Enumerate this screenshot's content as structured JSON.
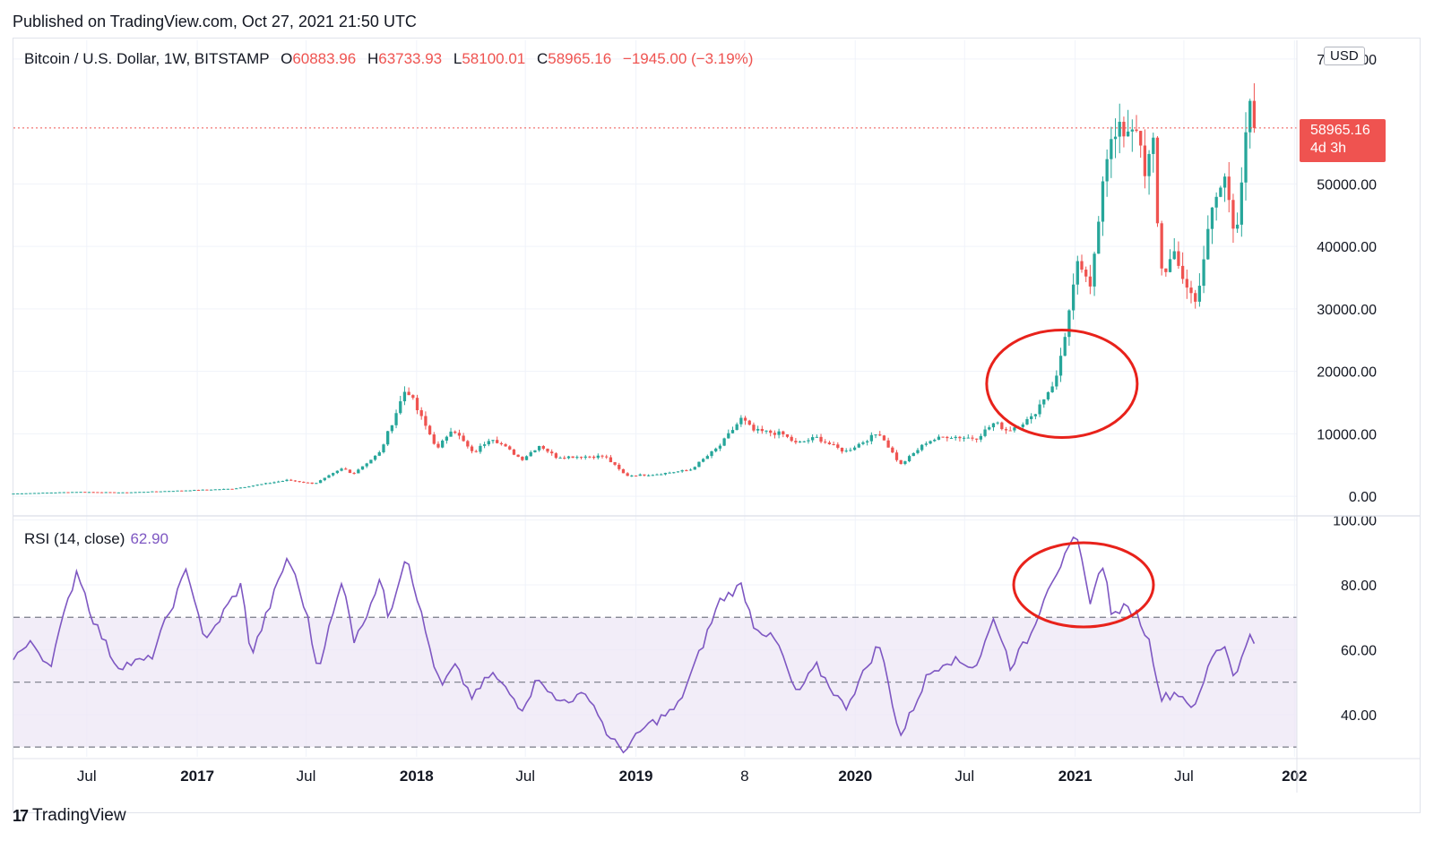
{
  "header": {
    "published": "Published on TradingView.com, Oct 27, 2021 21:50 UTC"
  },
  "legend": {
    "symbol": "Bitcoin / U.S. Dollar, 1W, BITSTAMP",
    "o_label": "O",
    "o_value": "60883.96",
    "h_label": "H",
    "h_value": "63733.93",
    "l_label": "L",
    "l_value": "58100.01",
    "c_label": "C",
    "c_value": "58965.16",
    "change": "−1945.00 (−3.19%)"
  },
  "rsi_legend": {
    "label": "RSI (14, close)",
    "value": "62.90"
  },
  "price_tag": {
    "price": "58965.16",
    "countdown": "4d 3h"
  },
  "currency": "USD",
  "brand": {
    "logo": "17",
    "name": "TradingView"
  },
  "colors": {
    "up": "#26a69a",
    "down": "#ef5350",
    "rsi": "#7e57c2",
    "band": "#ede7f6",
    "annotation": "#e8221b"
  },
  "chart_data": [
    {
      "type": "candlestick",
      "title": "Bitcoin / U.S. Dollar, 1W, BITSTAMP",
      "ylim": [
        -3000,
        73000
      ],
      "yticks": [
        "0.00",
        "10000.00",
        "20000.00",
        "30000.00",
        "40000.00",
        "50000.00",
        "70000.00"
      ],
      "last_price": 58965.16,
      "x_range": [
        "2016-03-01",
        "2022-01-05"
      ],
      "xticks": [
        {
          "date": "2016-07-01",
          "label": "Jul",
          "bold": false
        },
        {
          "date": "2017-01-01",
          "label": "2017",
          "bold": true
        },
        {
          "date": "2017-07-01",
          "label": "Jul",
          "bold": false
        },
        {
          "date": "2018-01-01",
          "label": "2018",
          "bold": true
        },
        {
          "date": "2018-07-01",
          "label": "Jul",
          "bold": false
        },
        {
          "date": "2019-01-01",
          "label": "2019",
          "bold": true
        },
        {
          "date": "2019-07-01",
          "label": "8",
          "bold": false
        },
        {
          "date": "2020-01-01",
          "label": "2020",
          "bold": true
        },
        {
          "date": "2020-07-01",
          "label": "Jul",
          "bold": false
        },
        {
          "date": "2021-01-01",
          "label": "2021",
          "bold": true
        },
        {
          "date": "2021-07-01",
          "label": "Jul",
          "bold": false
        },
        {
          "date": "2022-01-01",
          "label": "202",
          "bold": true
        }
      ],
      "anchors": [
        [
          "2016-03-01",
          430
        ],
        [
          "2016-06-15",
          700
        ],
        [
          "2016-09-01",
          600
        ],
        [
          "2017-01-01",
          1000
        ],
        [
          "2017-03-01",
          1200
        ],
        [
          "2017-06-01",
          2600
        ],
        [
          "2017-07-15",
          2000
        ],
        [
          "2017-09-01",
          4500
        ],
        [
          "2017-09-15",
          3500
        ],
        [
          "2017-11-01",
          7000
        ],
        [
          "2017-12-15",
          17500
        ],
        [
          "2018-01-01",
          14000
        ],
        [
          "2018-02-05",
          7500
        ],
        [
          "2018-03-01",
          11000
        ],
        [
          "2018-04-05",
          6800
        ],
        [
          "2018-05-05",
          9500
        ],
        [
          "2018-06-25",
          5900
        ],
        [
          "2018-07-25",
          8200
        ],
        [
          "2018-08-20",
          6300
        ],
        [
          "2018-11-10",
          6400
        ],
        [
          "2018-12-15",
          3300
        ],
        [
          "2019-02-01",
          3500
        ],
        [
          "2019-04-01",
          4200
        ],
        [
          "2019-05-20",
          8000
        ],
        [
          "2019-06-26",
          12500
        ],
        [
          "2019-07-15",
          10500
        ],
        [
          "2019-09-01",
          10000
        ],
        [
          "2019-09-25",
          8400
        ],
        [
          "2019-10-28",
          9400
        ],
        [
          "2019-12-15",
          7100
        ],
        [
          "2020-02-10",
          10200
        ],
        [
          "2020-03-16",
          5000
        ],
        [
          "2020-04-30",
          8800
        ],
        [
          "2020-06-01",
          9600
        ],
        [
          "2020-07-20",
          9300
        ],
        [
          "2020-08-20",
          11800
        ],
        [
          "2020-09-10",
          10500
        ],
        [
          "2020-10-20",
          12500
        ],
        [
          "2020-12-01",
          19000
        ],
        [
          "2021-01-08",
          38000
        ],
        [
          "2021-01-25",
          32000
        ],
        [
          "2021-02-20",
          55000
        ],
        [
          "2021-03-15",
          58000
        ],
        [
          "2021-04-14",
          60000
        ],
        [
          "2021-04-25",
          50000
        ],
        [
          "2021-05-12",
          57000
        ],
        [
          "2021-05-22",
          36000
        ],
        [
          "2021-06-15",
          38000
        ],
        [
          "2021-07-20",
          31000
        ],
        [
          "2021-08-20",
          47000
        ],
        [
          "2021-09-08",
          51000
        ],
        [
          "2021-09-25",
          42000
        ],
        [
          "2021-10-10",
          55000
        ],
        [
          "2021-10-20",
          63000
        ],
        [
          "2021-10-27",
          58965
        ]
      ]
    },
    {
      "type": "line",
      "series": [
        {
          "name": "RSI (14, close)",
          "color": "#7e57c2"
        }
      ],
      "ylim": [
        27,
        101
      ],
      "yticks": [
        "40.00",
        "60.00",
        "80.00",
        "100.00"
      ],
      "band": [
        30,
        70
      ],
      "midline": 50,
      "x_range": [
        "2016-03-01",
        "2022-01-05"
      ],
      "anchors": [
        [
          "2016-03-01",
          58
        ],
        [
          "2016-04-01",
          62
        ],
        [
          "2016-05-01",
          55
        ],
        [
          "2016-06-15",
          85
        ],
        [
          "2016-07-10",
          70
        ],
        [
          "2016-08-20",
          55
        ],
        [
          "2016-10-15",
          57
        ],
        [
          "2016-12-15",
          85
        ],
        [
          "2017-01-15",
          62
        ],
        [
          "2017-02-15",
          72
        ],
        [
          "2017-03-15",
          80
        ],
        [
          "2017-04-01",
          58
        ],
        [
          "2017-06-01",
          89
        ],
        [
          "2017-07-01",
          72
        ],
        [
          "2017-07-20",
          54
        ],
        [
          "2017-09-01",
          82
        ],
        [
          "2017-09-20",
          62
        ],
        [
          "2017-11-01",
          82
        ],
        [
          "2017-11-15",
          70
        ],
        [
          "2017-12-15",
          90
        ],
        [
          "2018-01-15",
          66
        ],
        [
          "2018-02-10",
          48
        ],
        [
          "2018-03-05",
          55
        ],
        [
          "2018-04-05",
          45
        ],
        [
          "2018-05-05",
          53
        ],
        [
          "2018-06-25",
          42
        ],
        [
          "2018-07-25",
          52
        ],
        [
          "2018-08-20",
          44
        ],
        [
          "2018-10-15",
          46
        ],
        [
          "2018-11-20",
          32
        ],
        [
          "2018-12-15",
          29
        ],
        [
          "2019-01-15",
          36
        ],
        [
          "2019-03-10",
          42
        ],
        [
          "2019-04-15",
          58
        ],
        [
          "2019-05-20",
          75
        ],
        [
          "2019-06-26",
          80
        ],
        [
          "2019-07-15",
          68
        ],
        [
          "2019-08-25",
          62
        ],
        [
          "2019-09-25",
          46
        ],
        [
          "2019-10-28",
          55
        ],
        [
          "2019-12-15",
          42
        ],
        [
          "2020-02-10",
          62
        ],
        [
          "2020-03-16",
          33
        ],
        [
          "2020-04-30",
          52
        ],
        [
          "2020-06-01",
          57
        ],
        [
          "2020-07-20",
          55
        ],
        [
          "2020-08-20",
          70
        ],
        [
          "2020-09-15",
          55
        ],
        [
          "2020-10-20",
          65
        ],
        [
          "2020-11-15",
          79
        ],
        [
          "2020-12-20",
          90
        ],
        [
          "2021-01-03",
          95
        ],
        [
          "2021-01-25",
          75
        ],
        [
          "2021-02-20",
          88
        ],
        [
          "2021-03-01",
          70
        ],
        [
          "2021-03-20",
          73
        ],
        [
          "2021-04-14",
          71
        ],
        [
          "2021-05-05",
          62
        ],
        [
          "2021-05-25",
          45
        ],
        [
          "2021-06-20",
          47
        ],
        [
          "2021-07-20",
          42
        ],
        [
          "2021-08-20",
          60
        ],
        [
          "2021-09-08",
          61
        ],
        [
          "2021-09-25",
          51
        ],
        [
          "2021-10-20",
          66
        ],
        [
          "2021-10-27",
          62.9
        ]
      ]
    }
  ]
}
